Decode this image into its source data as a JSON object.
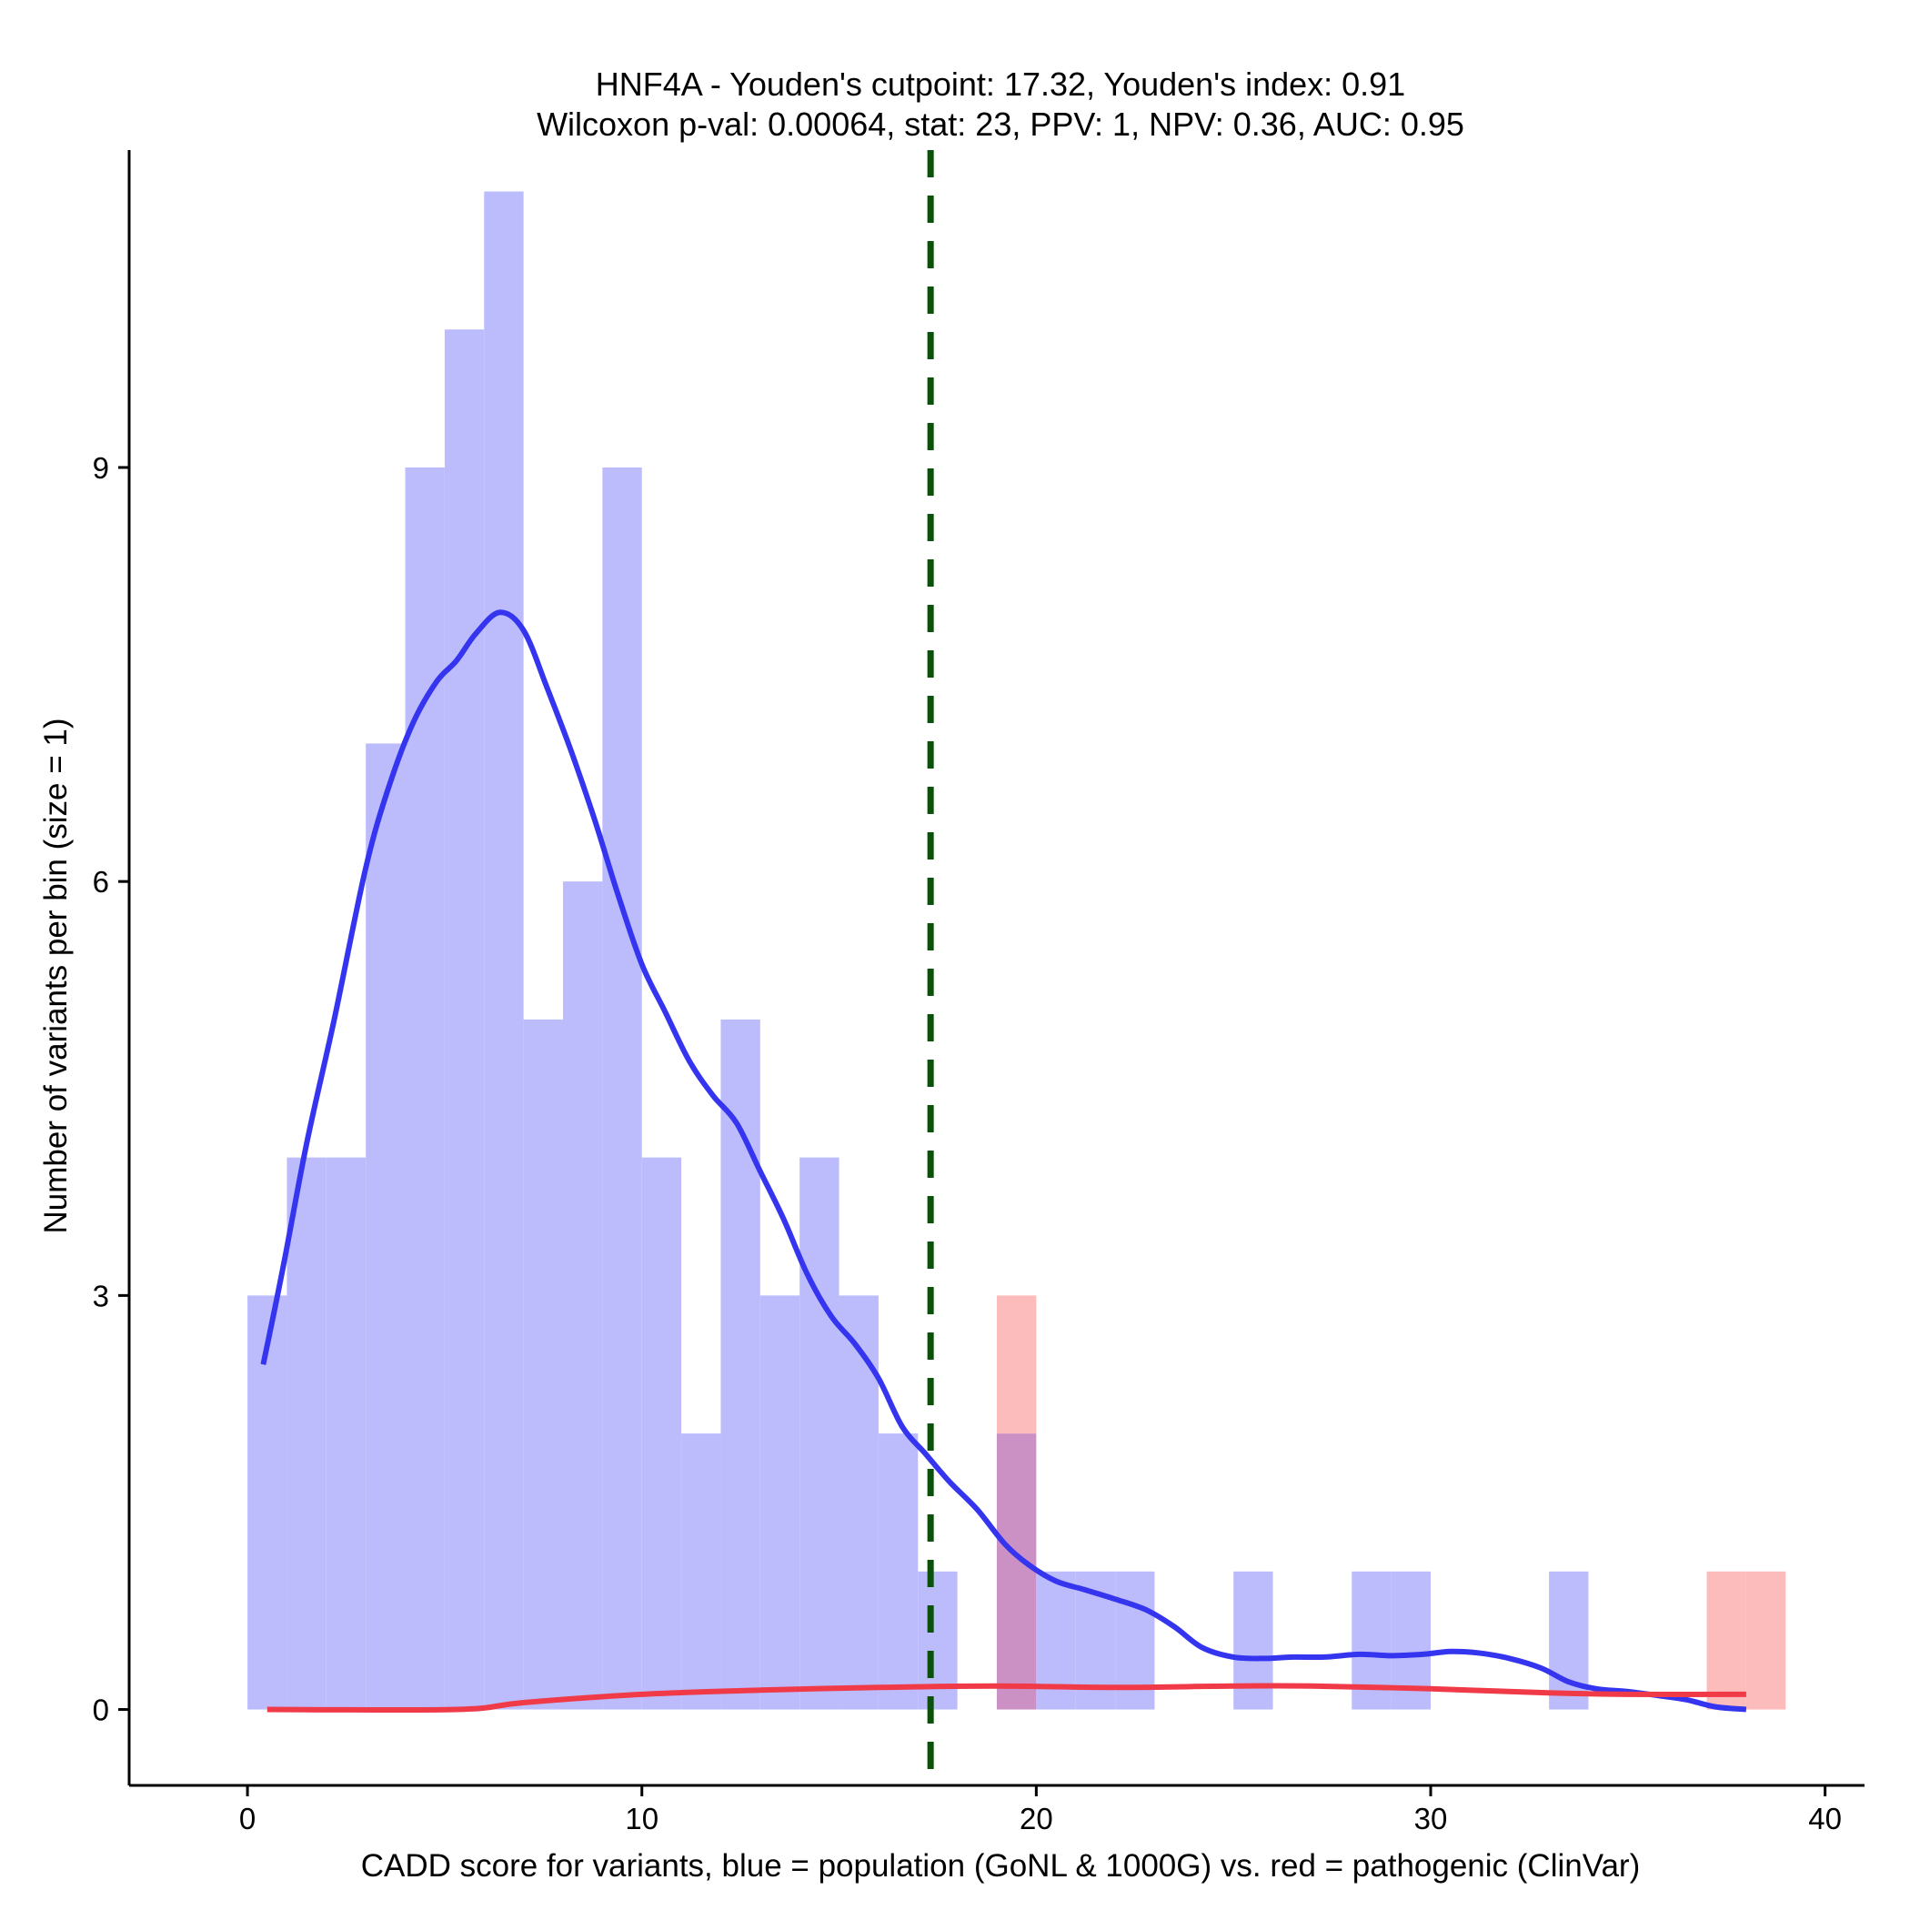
{
  "chart_data": {
    "type": "histogram",
    "title_line1": "HNF4A - Youden's cutpoint: 17.32, Youden's index: 0.91",
    "title_line2": "Wilcoxon p-val: 0.00064, stat: 23, PPV: 1, NPV: 0.36, AUC: 0.95",
    "xlabel": "CADD score for variants, blue = population (GoNL & 1000G) vs. red = pathogenic (ClinVar)",
    "ylabel": "Number of variants per bin (size = 1)",
    "xlim": [
      -3,
      41
    ],
    "ylim": [
      -0.55,
      11.3
    ],
    "xticks": [
      0,
      10,
      20,
      30,
      40
    ],
    "yticks": [
      0,
      3,
      6,
      9
    ],
    "bin_size": 1,
    "cutpoint": 17.32,
    "colors": {
      "population_bar": "#bcbcfc",
      "pathogenic_bar": "#fcbcbc",
      "overlap_bar": "#cc91c4",
      "population_line": "#3535f0",
      "pathogenic_line": "#f03a48",
      "cutpoint_line": "#0b500b"
    },
    "series": [
      {
        "name": "population",
        "bins": [
          {
            "x0": 0,
            "count": 3
          },
          {
            "x0": 1,
            "count": 4
          },
          {
            "x0": 2,
            "count": 4
          },
          {
            "x0": 3,
            "count": 7
          },
          {
            "x0": 4,
            "count": 9
          },
          {
            "x0": 5,
            "count": 10
          },
          {
            "x0": 6,
            "count": 11
          },
          {
            "x0": 7,
            "count": 5
          },
          {
            "x0": 8,
            "count": 6
          },
          {
            "x0": 9,
            "count": 9
          },
          {
            "x0": 10,
            "count": 4
          },
          {
            "x0": 11,
            "count": 2
          },
          {
            "x0": 12,
            "count": 5
          },
          {
            "x0": 13,
            "count": 3
          },
          {
            "x0": 14,
            "count": 4
          },
          {
            "x0": 15,
            "count": 3
          },
          {
            "x0": 16,
            "count": 2
          },
          {
            "x0": 17,
            "count": 1
          },
          {
            "x0": 19,
            "count": 2
          },
          {
            "x0": 20,
            "count": 1
          },
          {
            "x0": 21,
            "count": 1
          },
          {
            "x0": 22,
            "count": 1
          },
          {
            "x0": 25,
            "count": 1
          },
          {
            "x0": 28,
            "count": 1
          },
          {
            "x0": 29,
            "count": 1
          },
          {
            "x0": 33,
            "count": 1
          }
        ],
        "density": [
          [
            0.4,
            2.5
          ],
          [
            0.9,
            3.2
          ],
          [
            1.5,
            4.1
          ],
          [
            2.2,
            5.0
          ],
          [
            3.0,
            6.1
          ],
          [
            3.6,
            6.7
          ],
          [
            4.2,
            7.15
          ],
          [
            4.8,
            7.45
          ],
          [
            5.3,
            7.6
          ],
          [
            5.8,
            7.8
          ],
          [
            6.4,
            7.95
          ],
          [
            7.0,
            7.82
          ],
          [
            7.6,
            7.4
          ],
          [
            8.2,
            6.95
          ],
          [
            8.8,
            6.45
          ],
          [
            9.4,
            5.9
          ],
          [
            10.0,
            5.4
          ],
          [
            10.6,
            5.05
          ],
          [
            11.2,
            4.7
          ],
          [
            11.8,
            4.45
          ],
          [
            12.4,
            4.25
          ],
          [
            13.0,
            3.9
          ],
          [
            13.6,
            3.55
          ],
          [
            14.2,
            3.15
          ],
          [
            14.8,
            2.85
          ],
          [
            15.4,
            2.65
          ],
          [
            16.0,
            2.4
          ],
          [
            16.6,
            2.05
          ],
          [
            17.2,
            1.85
          ],
          [
            17.8,
            1.65
          ],
          [
            18.5,
            1.45
          ],
          [
            19.2,
            1.2
          ],
          [
            19.8,
            1.05
          ],
          [
            20.5,
            0.93
          ],
          [
            21.2,
            0.87
          ],
          [
            22.0,
            0.8
          ],
          [
            22.8,
            0.72
          ],
          [
            23.5,
            0.6
          ],
          [
            24.2,
            0.45
          ],
          [
            25.0,
            0.38
          ],
          [
            25.8,
            0.37
          ],
          [
            26.5,
            0.38
          ],
          [
            27.3,
            0.38
          ],
          [
            28.2,
            0.4
          ],
          [
            29.0,
            0.39
          ],
          [
            29.8,
            0.4
          ],
          [
            30.5,
            0.42
          ],
          [
            31.2,
            0.41
          ],
          [
            32.0,
            0.37
          ],
          [
            32.8,
            0.3
          ],
          [
            33.5,
            0.2
          ],
          [
            34.2,
            0.15
          ],
          [
            35.0,
            0.13
          ],
          [
            35.8,
            0.1
          ],
          [
            36.5,
            0.07
          ],
          [
            37.2,
            0.02
          ],
          [
            38.0,
            0.0
          ]
        ]
      },
      {
        "name": "pathogenic",
        "bins": [
          {
            "x0": 19,
            "count": 3
          },
          {
            "x0": 37,
            "count": 1
          },
          {
            "x0": 38,
            "count": 1
          }
        ],
        "density": [
          [
            0.5,
            0.0
          ],
          [
            5.3,
            0.0
          ],
          [
            7.0,
            0.05
          ],
          [
            10.0,
            0.11
          ],
          [
            13.0,
            0.14
          ],
          [
            16.0,
            0.16
          ],
          [
            19.0,
            0.17
          ],
          [
            22.0,
            0.16
          ],
          [
            25.0,
            0.17
          ],
          [
            27.0,
            0.17
          ],
          [
            30.0,
            0.15
          ],
          [
            33.0,
            0.12
          ],
          [
            35.0,
            0.11
          ],
          [
            38.0,
            0.11
          ]
        ]
      }
    ],
    "grid": false,
    "legend": "none"
  }
}
